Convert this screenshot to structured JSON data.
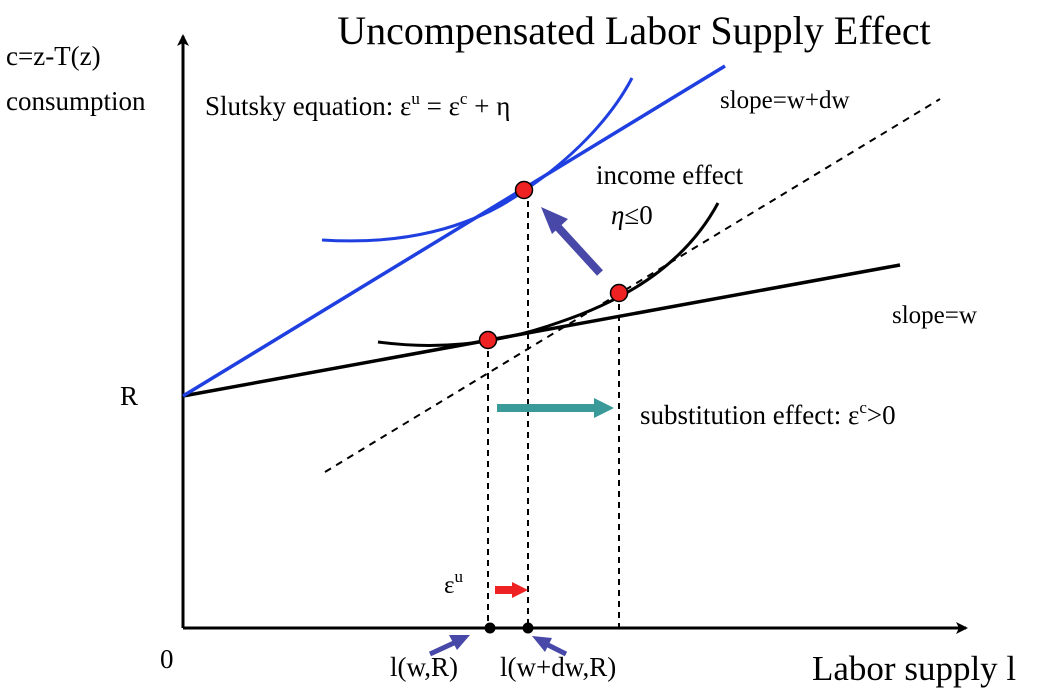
{
  "title": "Uncompensated Labor Supply Effect",
  "axes": {
    "y_label_line1": "c=z-T(z)",
    "y_label_line2": "consumption",
    "x_label": "Labor supply l",
    "origin": "0",
    "intercept": "R"
  },
  "labels": {
    "slutsky_prefix": "Slutsky equation: ",
    "slutsky_eps": "ε",
    "slutsky_u": "u",
    "slutsky_eq": " = ε",
    "slutsky_c": "c",
    "slutsky_tail": " + η",
    "slope_new": "slope=w+dw",
    "slope_old": "slope=w",
    "income_effect": "income effect",
    "eta_eta": "η",
    "eta_rest": "≤0",
    "sub_prefix": "substitution effect: ε",
    "sub_c": "c",
    "sub_rest": ">0",
    "eps_u_eps": "ε",
    "eps_u_u": "u",
    "l_old": "l(w,R)",
    "l_new": "l(w+dw,R)"
  },
  "colors": {
    "axis": "#000000",
    "budget_new": "#1f3fe0",
    "indiff_new": "#1f3fe0",
    "budget_old": "#000000",
    "indiff_old": "#000000",
    "dashed": "#000000",
    "point": "#ee2222",
    "income_arrow": "#4848a8",
    "substitution_arrow": "#3a9a9a",
    "eps_arrow": "#ee2222",
    "label_arrow": "#4848a8"
  }
}
